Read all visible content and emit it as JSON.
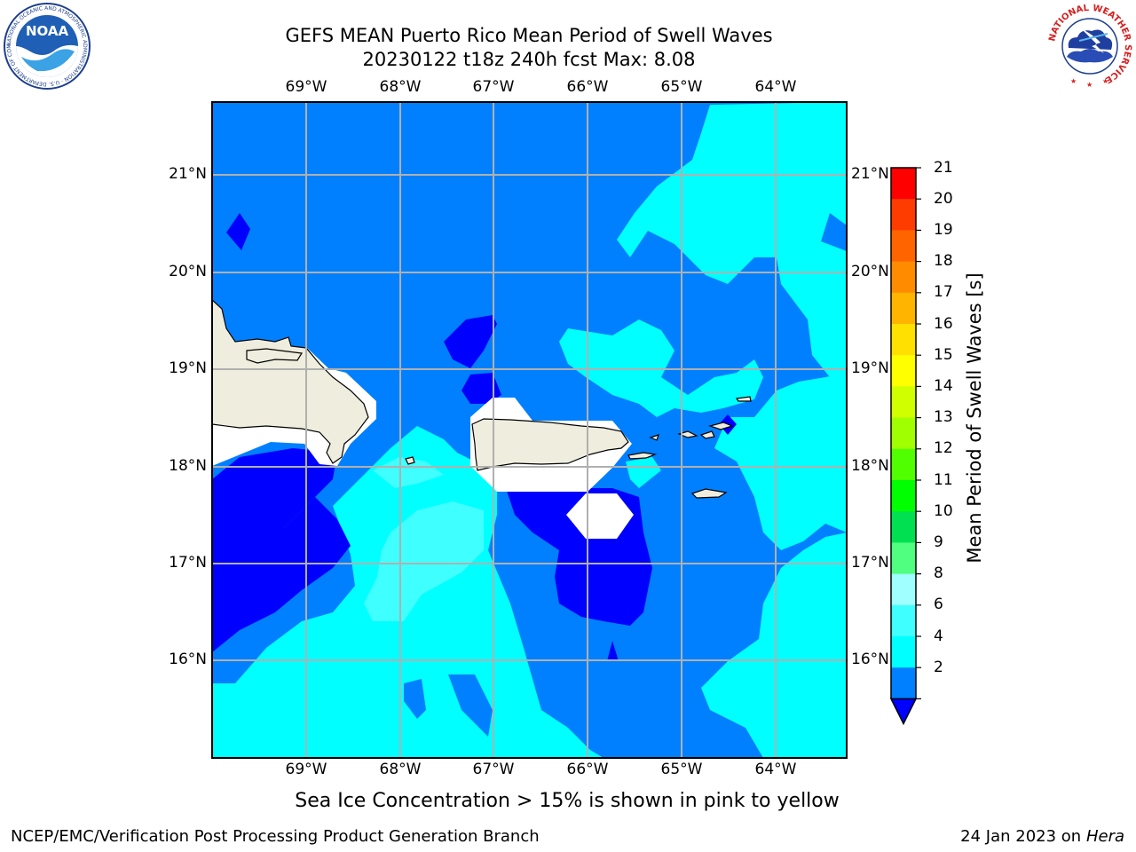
{
  "title": {
    "line1": "GEFS MEAN Puerto Rico Mean Period of Swell Waves",
    "line2": "20230122 t18z 240h fcst   Max: 8.08"
  },
  "map": {
    "lon_labels": [
      "69°W",
      "68°W",
      "67°W",
      "66°W",
      "65°W",
      "64°W"
    ],
    "lat_labels": [
      "21°N",
      "20°N",
      "19°N",
      "18°N",
      "17°N",
      "16°N"
    ]
  },
  "colorbar": {
    "title": "Mean Period of Swell Waves [s]",
    "ticks": [
      "21",
      "20",
      "19",
      "18",
      "17",
      "16",
      "15",
      "14",
      "13",
      "12",
      "11",
      "10",
      "9",
      "8",
      "6",
      "4",
      "2"
    ],
    "colors": [
      "#0000ff",
      "#0080ff",
      "#00ffff",
      "#40ffff",
      "#a0ffff",
      "#50ff80",
      "#00e050",
      "#00ff00",
      "#50ff00",
      "#a0ff00",
      "#d0ff00",
      "#ffff00",
      "#ffe000",
      "#ffb400",
      "#ff8c00",
      "#ff6400",
      "#ff3c00",
      "#ff0000"
    ],
    "extend": "min"
  },
  "footer": {
    "note": "Sea Ice Concentration > 15% is shown in pink to yellow",
    "left": "NCEP/EMC/Verification Post Processing Product Generation Branch",
    "right_date": "24 Jan 2023 on ",
    "right_machine": "Hera"
  },
  "logos": {
    "noaa": "NOAA",
    "noaa_ring": "NATIONAL OCEANIC AND ATMOSPHERIC ADMINISTRATION · U.S. DEPARTMENT OF COMMERCE",
    "nws_ring": "NATIONAL WEATHER SERVICE"
  },
  "colors": {
    "land": "#efedde",
    "ice_mask": "#ffffff",
    "grid": "#b0b0b0"
  }
}
